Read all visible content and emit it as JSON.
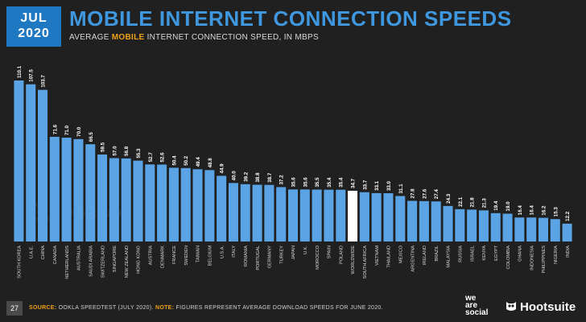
{
  "badge": {
    "month": "JUL",
    "year": "2020"
  },
  "header": {
    "title": "MOBILE INTERNET CONNECTION SPEEDS",
    "subtitle_pre": "AVERAGE ",
    "subtitle_hl": "MOBILE",
    "subtitle_post": " INTERNET CONNECTION SPEED, IN MBPS"
  },
  "footer": {
    "page": "27",
    "source_label": "SOURCE:",
    "source_text": " OOKLA SPEEDTEST (JULY 2020).",
    "note_label": " NOTE:",
    "note_text": " FIGURES REPRESENT AVERAGE DOWNLOAD SPEEDS FOR JUNE 2020."
  },
  "brand": {
    "weare": [
      "we",
      "are",
      "social"
    ],
    "hootsuite": "Hootsuite"
  },
  "watermark": {
    "weare": [
      "we",
      "are",
      "social"
    ],
    "hootsuite": "Hootsuite"
  },
  "colors": {
    "bar": "#5aa4e6",
    "highlight": "#ffffff",
    "accent": "#f0a11a",
    "title": "#3f98df"
  },
  "chart_data": {
    "type": "bar",
    "title": "MOBILE INTERNET CONNECTION SPEEDS",
    "ylim": [
      0,
      115
    ],
    "grid": false,
    "highlight_category": "WORLDWIDE",
    "categories": [
      "SOUTH KOREA",
      "U.A.E.",
      "CHINA",
      "CANADA",
      "NETHERLANDS",
      "AUSTRALIA",
      "SAUDI ARABIA",
      "SWITZERLAND",
      "SINGAPORE",
      "NEW ZEALAND",
      "HONG KONG",
      "AUSTRIA",
      "DENMARK",
      "FRANCE",
      "SWEDEN",
      "TAIWAN",
      "BELGIUM",
      "U.S.A.",
      "ITALY",
      "ROMANIA",
      "PORTUGAL",
      "GERMANY",
      "TURKEY",
      "JAPAN",
      "U.K.",
      "MOROCCO",
      "SPAIN",
      "POLAND",
      "WORLDWIDE",
      "SOUTH AFRICA",
      "VIETNAM",
      "THAILAND",
      "MEXICO",
      "ARGENTINA",
      "IRELAND",
      "BRAZIL",
      "MALAYSIA",
      "RUSSIA",
      "ISRAEL",
      "KENYA",
      "EGYPT",
      "COLOMBIA",
      "GHANA",
      "INDONESIA",
      "PHILIPPINES",
      "NIGERIA",
      "INDIA"
    ],
    "values": [
      110.1,
      107.5,
      103.7,
      71.6,
      71.0,
      70.0,
      66.5,
      59.5,
      57.0,
      56.8,
      55.3,
      52.7,
      52.6,
      50.4,
      50.2,
      49.4,
      48.8,
      44.9,
      40.0,
      39.2,
      38.8,
      38.7,
      37.2,
      35.6,
      35.6,
      35.5,
      35.4,
      35.4,
      34.7,
      33.7,
      33.1,
      33.0,
      31.1,
      27.8,
      27.6,
      27.4,
      24.3,
      22.1,
      21.8,
      21.3,
      19.4,
      19.0,
      16.4,
      16.4,
      16.2,
      15.3,
      12.2
    ],
    "labels": [
      "110.1",
      "107.5",
      "103.7",
      "71.6",
      "71.0",
      "70.0",
      "66.5",
      "59.5",
      "57.0",
      "56.8",
      "55.3",
      "52.7",
      "52.6",
      "50.4",
      "50.2",
      "49.4",
      "48.8",
      "44.9",
      "40.0",
      "39.2",
      "38.8",
      "38.7",
      "37.2",
      "35.6",
      "35.6",
      "35.5",
      "35.4",
      "35.4",
      "34.7",
      "33.7",
      "33.1",
      "33.0",
      "31.1",
      "27.8",
      "27.6",
      "27.4",
      "24.3",
      "22.1",
      "21.8",
      "21.3",
      "19.4",
      "19.0",
      "16.4",
      "16.4",
      "16.2",
      "15.3",
      "12.2"
    ]
  }
}
